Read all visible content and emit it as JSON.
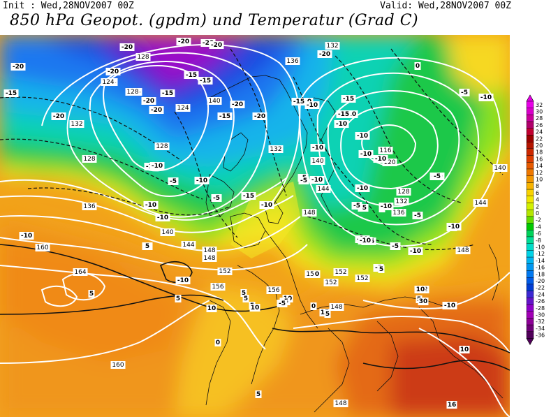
{
  "header": {
    "init": "Init : Wed,28NOV2007 00Z",
    "valid": "Valid: Wed,28NOV2007 00Z",
    "title": "850 hPa Geopot. (gpdm) und Temperatur (Grad C)"
  },
  "legend": {
    "labels": [
      "32",
      "30",
      "28",
      "26",
      "24",
      "22",
      "20",
      "18",
      "16",
      "14",
      "12",
      "10",
      "8",
      "6",
      "4",
      "2",
      "0",
      "-2",
      "-4",
      "-6",
      "-8",
      "-10",
      "-12",
      "-14",
      "-16",
      "-18",
      "-20",
      "-22",
      "-24",
      "-26",
      "-28",
      "-30",
      "-32",
      "-34",
      "-36"
    ],
    "colors": [
      "#e600e6",
      "#d800c8",
      "#c8009a",
      "#b0006a",
      "#c00030",
      "#9b0000",
      "#b41400",
      "#cc2800",
      "#dc3c00",
      "#e65a00",
      "#ee7800",
      "#f29600",
      "#f8b400",
      "#f8d200",
      "#f0e600",
      "#d2f000",
      "#b4e600",
      "#64dc00",
      "#00c800",
      "#00d25a",
      "#00dc96",
      "#00dcc8",
      "#00d2e6",
      "#00b4f0",
      "#0096f0",
      "#0078f0",
      "#005ae6",
      "#003cd2",
      "#3c28d2",
      "#6414c8",
      "#8c00c8",
      "#a000b4",
      "#8c0096",
      "#6e0078",
      "#50005a"
    ]
  },
  "map_labels": {
    "geopotential": [
      "132",
      "124",
      "128",
      "136",
      "140",
      "128",
      "132",
      "124",
      "136",
      "128",
      "132",
      "124",
      "128",
      "140",
      "116",
      "120",
      "128",
      "132",
      "136",
      "148",
      "144",
      "140",
      "148",
      "140",
      "144",
      "148",
      "136",
      "140",
      "144",
      "148",
      "152",
      "156",
      "152",
      "152",
      "148",
      "152",
      "160",
      "164",
      "160",
      "148",
      "152",
      "156",
      "152"
    ],
    "temperature": [
      "-20",
      "-20",
      "-20",
      "-20",
      "-20",
      "-20",
      "-15",
      "-15",
      "-20",
      "-20",
      "-20",
      "-20",
      "-15",
      "-15",
      "-10",
      "-10",
      "-15",
      "-20",
      "-20",
      "-15",
      "-15",
      "-10",
      "-10",
      "-10",
      "-10",
      "-10",
      "-15",
      "-10",
      "-5",
      "-10",
      "-10",
      "-10",
      "-5",
      "-10",
      "-5",
      "-10",
      "-10",
      "-10",
      "-5",
      "-10",
      "-5",
      "-15",
      "-10",
      "0",
      "-5",
      "-10",
      "-5",
      "0",
      "-5",
      "-10",
      "-5",
      "-10",
      "-5",
      "-10",
      "-15",
      "-10",
      "-5",
      "-10",
      "-5",
      "-10",
      "-5",
      "-10",
      "0",
      "5",
      "10",
      "5",
      "5",
      "10",
      "15",
      "5",
      "0",
      "-5",
      "5",
      "10",
      "-10",
      "0",
      "10",
      "5",
      "10",
      "16",
      "30",
      "5",
      "5",
      "5",
      "-5",
      "0",
      "5",
      "-5"
    ]
  }
}
